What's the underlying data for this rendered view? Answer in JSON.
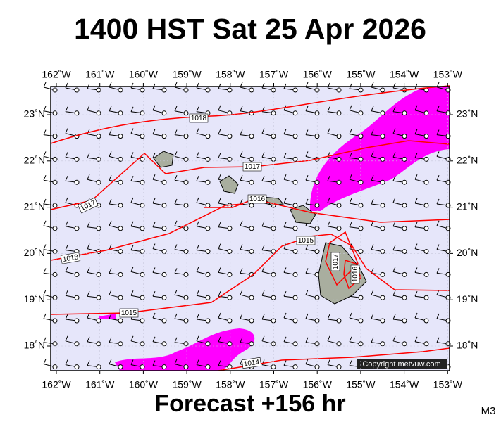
{
  "title": "1400 HST Sat 25 Apr 2026",
  "footer": "Forecast +156 hr",
  "code": "M3",
  "copyright": "Copyright metvuw.com",
  "lon_labels": [
    "162˚W",
    "161˚W",
    "160˚W",
    "159˚W",
    "158˚W",
    "157˚W",
    "156˚W",
    "155˚W",
    "154˚W",
    "153˚W"
  ],
  "lat_labels": [
    "23˚N",
    "22˚N",
    "21˚N",
    "20˚N",
    "19˚N",
    "18˚N"
  ],
  "isobar_labels": [
    "1018",
    "1017",
    "1016",
    "1017",
    "1018",
    "1015",
    "1017",
    "1016",
    "1015",
    "1014"
  ]
}
